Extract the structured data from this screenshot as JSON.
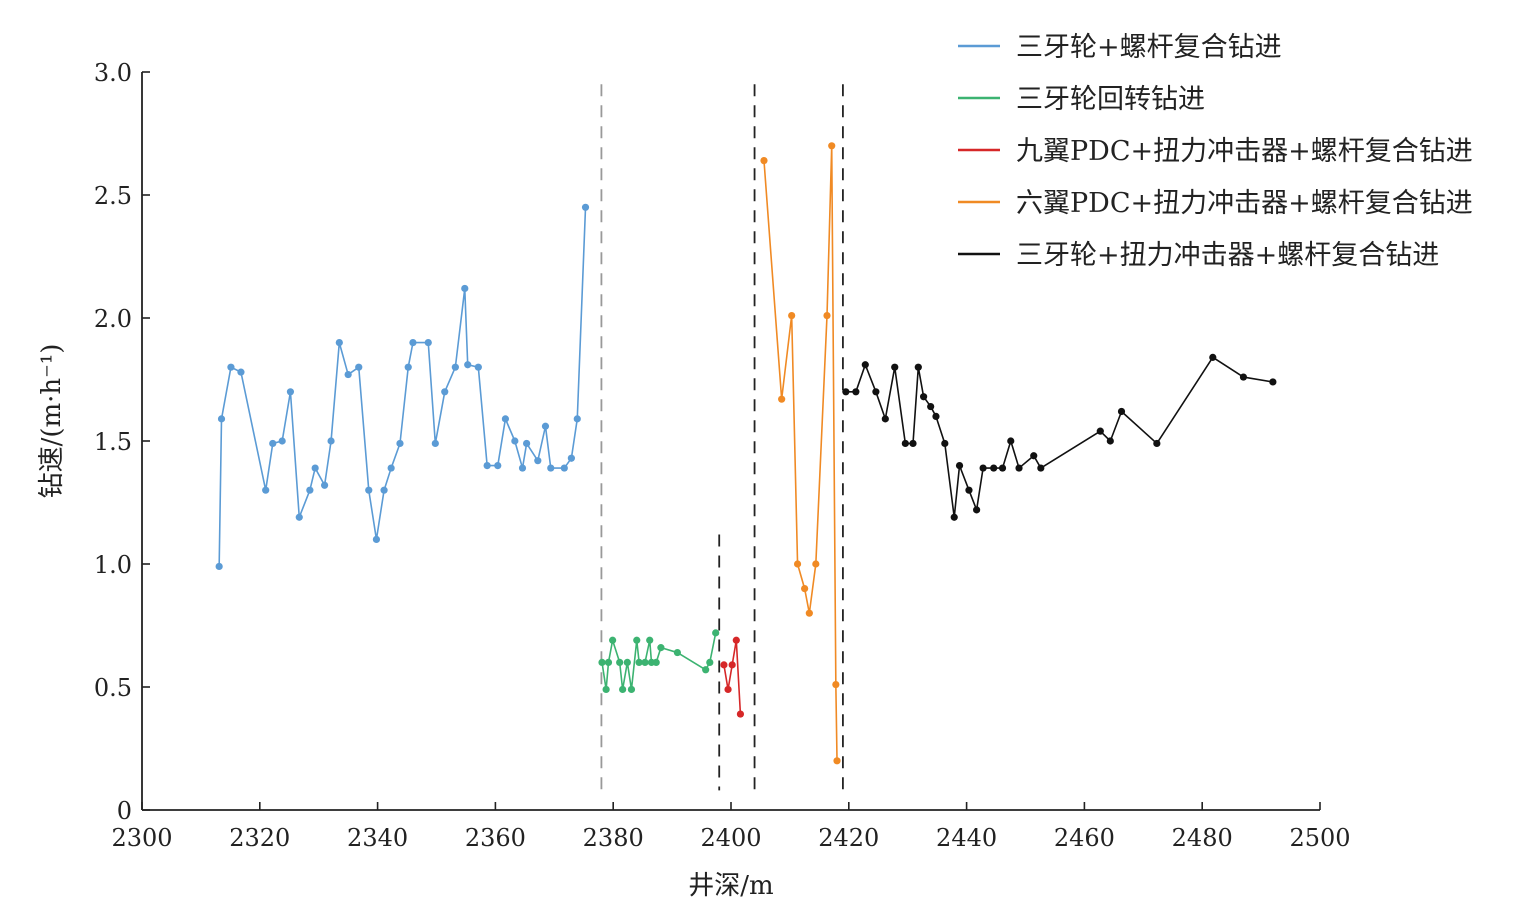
{
  "chart_data": {
    "type": "line",
    "xlabel": "井深/m",
    "ylabel": "钻速/(m·h⁻¹)",
    "xlim": [
      2300,
      2500
    ],
    "ylim": [
      0,
      3.0
    ],
    "x_ticks": [
      2300,
      2320,
      2340,
      2360,
      2380,
      2400,
      2420,
      2440,
      2460,
      2480,
      2500
    ],
    "x_tick_labels": [
      "2300",
      "2320",
      "2340",
      "2360",
      "2380",
      "2400",
      "2420",
      "2440",
      "2460",
      "2480",
      "2500"
    ],
    "y_ticks": [
      0,
      0.5,
      1.0,
      1.5,
      2.0,
      2.5,
      3.0
    ],
    "y_tick_labels": [
      "0",
      "0.5",
      "1.0",
      "1.5",
      "2.0",
      "2.5",
      "3.0"
    ],
    "grid": false,
    "legend_position": "top-right",
    "dividers": [
      {
        "x": 2378,
        "y_range": [
          0.05,
          2.95
        ],
        "color": "#999999"
      },
      {
        "x": 2398,
        "y_range": [
          0.08,
          1.12
        ],
        "color": "#222222"
      },
      {
        "x": 2404,
        "y_range": [
          0.05,
          2.95
        ],
        "color": "#222222"
      },
      {
        "x": 2419,
        "y_range": [
          0.05,
          2.95
        ],
        "color": "#222222"
      }
    ],
    "series": [
      {
        "name": "三牙轮+螺杆复合钻进",
        "color": "#5b9bd5",
        "points": [
          [
            2313.1,
            0.99
          ],
          [
            2313.5,
            1.59
          ],
          [
            2315.1,
            1.8
          ],
          [
            2316.8,
            1.78
          ],
          [
            2321.0,
            1.3
          ],
          [
            2322.2,
            1.49
          ],
          [
            2323.8,
            1.5
          ],
          [
            2325.2,
            1.7
          ],
          [
            2326.7,
            1.19
          ],
          [
            2328.5,
            1.3
          ],
          [
            2329.4,
            1.39
          ],
          [
            2331.0,
            1.32
          ],
          [
            2332.1,
            1.5
          ],
          [
            2333.5,
            1.9
          ],
          [
            2335.0,
            1.77
          ],
          [
            2336.8,
            1.8
          ],
          [
            2338.5,
            1.3
          ],
          [
            2339.8,
            1.1
          ],
          [
            2341.1,
            1.3
          ],
          [
            2342.3,
            1.39
          ],
          [
            2343.8,
            1.49
          ],
          [
            2345.2,
            1.8
          ],
          [
            2346.0,
            1.9
          ],
          [
            2348.6,
            1.9
          ],
          [
            2349.8,
            1.49
          ],
          [
            2351.4,
            1.7
          ],
          [
            2353.2,
            1.8
          ],
          [
            2354.8,
            2.12
          ],
          [
            2355.3,
            1.81
          ],
          [
            2357.1,
            1.8
          ],
          [
            2358.6,
            1.4
          ],
          [
            2360.4,
            1.4
          ],
          [
            2361.7,
            1.59
          ],
          [
            2363.3,
            1.5
          ],
          [
            2364.6,
            1.39
          ],
          [
            2365.3,
            1.49
          ],
          [
            2367.2,
            1.42
          ],
          [
            2368.5,
            1.56
          ],
          [
            2369.4,
            1.39
          ],
          [
            2371.7,
            1.39
          ],
          [
            2372.9,
            1.43
          ],
          [
            2373.9,
            1.59
          ],
          [
            2375.3,
            2.45
          ]
        ]
      },
      {
        "name": "三牙轮回转钻进",
        "color": "#3cb371",
        "points": [
          [
            2378.1,
            0.6
          ],
          [
            2378.8,
            0.49
          ],
          [
            2379.2,
            0.6
          ],
          [
            2379.9,
            0.69
          ],
          [
            2381.1,
            0.6
          ],
          [
            2381.6,
            0.49
          ],
          [
            2382.4,
            0.6
          ],
          [
            2383.1,
            0.49
          ],
          [
            2384.0,
            0.69
          ],
          [
            2384.4,
            0.6
          ],
          [
            2385.4,
            0.6
          ],
          [
            2386.2,
            0.69
          ],
          [
            2386.5,
            0.6
          ],
          [
            2387.3,
            0.6
          ],
          [
            2388.1,
            0.66
          ],
          [
            2390.9,
            0.64
          ],
          [
            2395.7,
            0.57
          ],
          [
            2396.4,
            0.6
          ],
          [
            2397.4,
            0.72
          ]
        ]
      },
      {
        "name": "九翼PDC+扭力冲击器+螺杆复合钻进",
        "color": "#d62728",
        "points": [
          [
            2398.8,
            0.59
          ],
          [
            2399.5,
            0.49
          ],
          [
            2400.2,
            0.59
          ],
          [
            2400.9,
            0.69
          ],
          [
            2401.6,
            0.39
          ]
        ]
      },
      {
        "name": "六翼PDC+扭力冲击器+螺杆复合钻进",
        "color": "#f08a24",
        "points": [
          [
            2405.6,
            2.64
          ],
          [
            2408.6,
            1.67
          ],
          [
            2410.3,
            2.01
          ],
          [
            2411.3,
            1.0
          ],
          [
            2412.5,
            0.9
          ],
          [
            2413.3,
            0.8
          ],
          [
            2414.4,
            1.0
          ],
          [
            2416.3,
            2.01
          ],
          [
            2417.1,
            2.7
          ],
          [
            2417.8,
            0.51
          ],
          [
            2418.0,
            0.2
          ]
        ]
      },
      {
        "name": "三牙轮+扭力冲击器+螺杆复合钻进",
        "color": "#111111",
        "points": [
          [
            2419.5,
            1.7
          ],
          [
            2421.2,
            1.7
          ],
          [
            2422.8,
            1.81
          ],
          [
            2424.6,
            1.7
          ],
          [
            2426.2,
            1.59
          ],
          [
            2427.8,
            1.8
          ],
          [
            2429.6,
            1.49
          ],
          [
            2430.9,
            1.49
          ],
          [
            2431.8,
            1.8
          ],
          [
            2432.7,
            1.68
          ],
          [
            2433.9,
            1.64
          ],
          [
            2434.8,
            1.6
          ],
          [
            2436.3,
            1.49
          ],
          [
            2437.9,
            1.19
          ],
          [
            2438.8,
            1.4
          ],
          [
            2440.4,
            1.3
          ],
          [
            2441.7,
            1.22
          ],
          [
            2442.8,
            1.39
          ],
          [
            2444.6,
            1.39
          ],
          [
            2446.1,
            1.39
          ],
          [
            2447.5,
            1.5
          ],
          [
            2448.9,
            1.39
          ],
          [
            2451.4,
            1.44
          ],
          [
            2452.6,
            1.39
          ],
          [
            2462.7,
            1.54
          ],
          [
            2464.4,
            1.5
          ],
          [
            2466.3,
            1.62
          ],
          [
            2472.3,
            1.49
          ],
          [
            2481.8,
            1.84
          ],
          [
            2487.0,
            1.76
          ],
          [
            2492.0,
            1.74
          ]
        ]
      }
    ]
  }
}
